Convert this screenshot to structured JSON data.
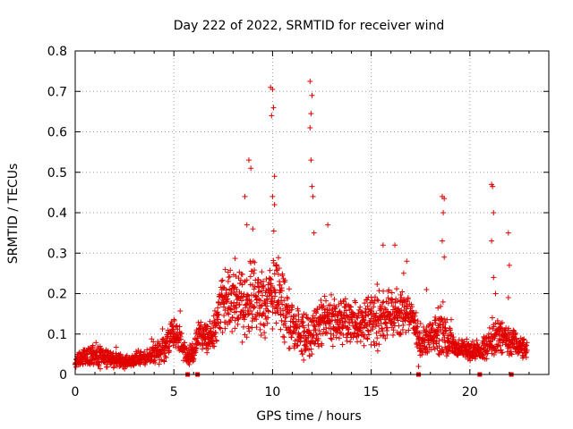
{
  "chart_data": {
    "type": "scatter",
    "title": "Day 222 of 2022, SRMTID for receiver wind",
    "xlabel": "GPS time / hours",
    "ylabel": "SRMTID / TECUs",
    "xlim": [
      0,
      24
    ],
    "ylim": [
      0,
      0.8
    ],
    "x_ticks": [
      0,
      5,
      10,
      15,
      20
    ],
    "x_tick_labels": [
      "0",
      "5",
      "10",
      "15",
      "20"
    ],
    "y_ticks": [
      0,
      0.1,
      0.2,
      0.3,
      0.4,
      0.5,
      0.6,
      0.7,
      0.8
    ],
    "y_tick_labels": [
      "0",
      "0.1",
      "0.2",
      "0.3",
      "0.4",
      "0.5",
      "0.6",
      "0.7",
      "0.8"
    ],
    "grid": true,
    "marker": "plus",
    "color": "#e00000",
    "series": [
      {
        "name": "SRMTID",
        "envelope": {
          "x": [
            0,
            0.5,
            1,
            1.5,
            2,
            2.5,
            3,
            3.5,
            4,
            4.5,
            5,
            5.3,
            5.6,
            6,
            6.3,
            6.7,
            7,
            7.5,
            8,
            8.5,
            9,
            9.5,
            10,
            10.5,
            11,
            11.5,
            12,
            12.5,
            13,
            13.5,
            14,
            14.5,
            15,
            15.5,
            16,
            16.5,
            17,
            17.5,
            18,
            18.5,
            19,
            19.5,
            20,
            20.5,
            21,
            21.5,
            22,
            22.5,
            22.9
          ],
          "center": [
            0.03,
            0.045,
            0.05,
            0.04,
            0.035,
            0.03,
            0.035,
            0.04,
            0.05,
            0.06,
            0.11,
            0.08,
            0.05,
            0.055,
            0.1,
            0.09,
            0.1,
            0.19,
            0.18,
            0.17,
            0.2,
            0.16,
            0.2,
            0.17,
            0.12,
            0.09,
            0.1,
            0.13,
            0.13,
            0.14,
            0.13,
            0.13,
            0.14,
            0.14,
            0.15,
            0.15,
            0.15,
            0.08,
            0.09,
            0.1,
            0.08,
            0.06,
            0.06,
            0.06,
            0.08,
            0.1,
            0.08,
            0.07,
            0.06
          ],
          "spread": [
            0.01,
            0.02,
            0.025,
            0.02,
            0.015,
            0.015,
            0.015,
            0.015,
            0.02,
            0.03,
            0.03,
            0.03,
            0.02,
            0.02,
            0.03,
            0.03,
            0.04,
            0.06,
            0.06,
            0.07,
            0.08,
            0.07,
            0.08,
            0.07,
            0.05,
            0.05,
            0.05,
            0.05,
            0.05,
            0.05,
            0.05,
            0.05,
            0.06,
            0.06,
            0.05,
            0.05,
            0.03,
            0.03,
            0.03,
            0.04,
            0.03,
            0.02,
            0.02,
            0.02,
            0.03,
            0.04,
            0.03,
            0.02,
            0.02
          ]
        },
        "peaks": [
          {
            "x": 8.8,
            "y": 0.53
          },
          {
            "x": 8.9,
            "y": 0.51
          },
          {
            "x": 8.6,
            "y": 0.44
          },
          {
            "x": 8.7,
            "y": 0.37
          },
          {
            "x": 9.0,
            "y": 0.36
          },
          {
            "x": 9.9,
            "y": 0.71
          },
          {
            "x": 10.0,
            "y": 0.705
          },
          {
            "x": 9.95,
            "y": 0.64
          },
          {
            "x": 10.05,
            "y": 0.66
          },
          {
            "x": 10.1,
            "y": 0.49
          },
          {
            "x": 10.0,
            "y": 0.44
          },
          {
            "x": 10.1,
            "y": 0.42
          },
          {
            "x": 11.9,
            "y": 0.725
          },
          {
            "x": 12.0,
            "y": 0.69
          },
          {
            "x": 11.95,
            "y": 0.645
          },
          {
            "x": 11.9,
            "y": 0.61
          },
          {
            "x": 11.95,
            "y": 0.53
          },
          {
            "x": 12.0,
            "y": 0.465
          },
          {
            "x": 12.05,
            "y": 0.44
          },
          {
            "x": 12.1,
            "y": 0.35
          },
          {
            "x": 12.8,
            "y": 0.37
          },
          {
            "x": 15.6,
            "y": 0.32
          },
          {
            "x": 16.2,
            "y": 0.32
          },
          {
            "x": 16.8,
            "y": 0.28
          },
          {
            "x": 18.6,
            "y": 0.44
          },
          {
            "x": 18.7,
            "y": 0.435
          },
          {
            "x": 18.65,
            "y": 0.4
          },
          {
            "x": 18.6,
            "y": 0.33
          },
          {
            "x": 18.7,
            "y": 0.29
          },
          {
            "x": 17.8,
            "y": 0.21
          },
          {
            "x": 21.1,
            "y": 0.47
          },
          {
            "x": 21.15,
            "y": 0.465
          },
          {
            "x": 21.2,
            "y": 0.4
          },
          {
            "x": 21.1,
            "y": 0.33
          },
          {
            "x": 21.2,
            "y": 0.24
          },
          {
            "x": 21.3,
            "y": 0.2
          },
          {
            "x": 21.95,
            "y": 0.35
          },
          {
            "x": 22.0,
            "y": 0.27
          },
          {
            "x": 21.95,
            "y": 0.19
          },
          {
            "x": 17.4,
            "y": 0.02
          }
        ]
      }
    ],
    "gaps_x": [
      5.7,
      6.2,
      17.4,
      20.5,
      22.1
    ]
  }
}
